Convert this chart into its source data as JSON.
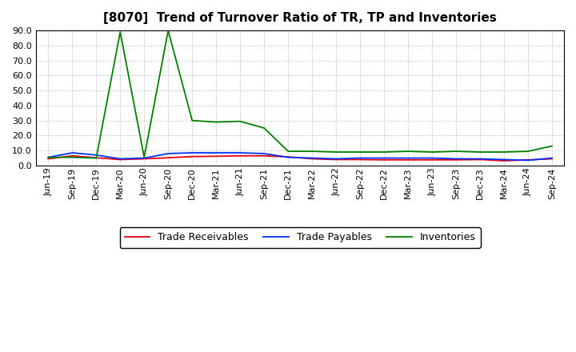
{
  "title": "[8070]  Trend of Turnover Ratio of TR, TP and Inventories",
  "ylim": [
    0.0,
    90.0
  ],
  "yticks": [
    0.0,
    10.0,
    20.0,
    30.0,
    40.0,
    50.0,
    60.0,
    70.0,
    80.0,
    90.0
  ],
  "x_labels": [
    "Jun-19",
    "Sep-19",
    "Dec-19",
    "Mar-20",
    "Jun-20",
    "Sep-20",
    "Dec-20",
    "Mar-21",
    "Jun-21",
    "Sep-21",
    "Dec-21",
    "Mar-22",
    "Jun-22",
    "Sep-22",
    "Dec-22",
    "Mar-23",
    "Jun-23",
    "Sep-23",
    "Dec-23",
    "Mar-24",
    "Jun-24",
    "Sep-24"
  ],
  "trade_receivables": [
    4.5,
    6.5,
    5.2,
    4.0,
    4.5,
    5.2,
    6.0,
    6.2,
    6.5,
    6.5,
    5.8,
    4.5,
    4.0,
    4.0,
    3.8,
    3.8,
    3.8,
    3.8,
    4.0,
    3.2,
    3.8,
    4.5
  ],
  "trade_payables": [
    5.5,
    8.5,
    7.0,
    4.5,
    5.0,
    8.0,
    8.5,
    8.5,
    8.5,
    8.0,
    5.5,
    5.0,
    4.5,
    5.0,
    5.0,
    5.0,
    5.0,
    4.5,
    4.5,
    4.0,
    3.5,
    5.0
  ],
  "inventories": [
    5.5,
    5.5,
    5.0,
    89.0,
    5.5,
    90.0,
    30.0,
    29.0,
    29.5,
    25.0,
    9.5,
    9.5,
    9.0,
    9.0,
    9.0,
    9.5,
    9.0,
    9.5,
    9.0,
    9.0,
    9.5,
    13.0
  ],
  "color_tr": "#e8000d",
  "color_tp": "#0032ff",
  "color_inv": "#008000",
  "legend_tr": "Trade Receivables",
  "legend_tp": "Trade Payables",
  "legend_inv": "Inventories",
  "bg_color": "#ffffff",
  "grid_color": "#808080",
  "title_fontsize": 11,
  "tick_fontsize": 8,
  "legend_fontsize": 9
}
